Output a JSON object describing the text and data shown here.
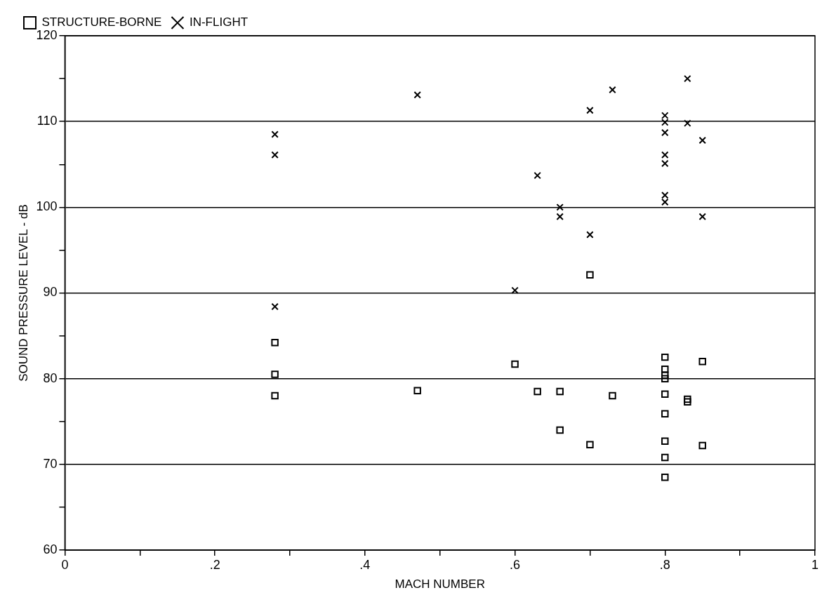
{
  "chart_data": {
    "type": "scatter",
    "xlabel": "MACH NUMBER",
    "ylabel": "SOUND PRESSURE LEVEL - dB",
    "xlim": [
      0,
      1
    ],
    "ylim": [
      60,
      120
    ],
    "xticks": [
      0,
      {
        "value": 0.1,
        "label": null
      },
      {
        "value": 0.2,
        "label": ".2"
      },
      {
        "value": 0.3,
        "label": null
      },
      {
        "value": 0.4,
        "label": ".4"
      },
      {
        "value": 0.5,
        "label": null
      },
      {
        "value": 0.6,
        "label": ".6"
      },
      {
        "value": 0.7,
        "label": null
      },
      {
        "value": 0.8,
        "label": ".8"
      },
      {
        "value": 0.9,
        "label": null
      },
      1
    ],
    "yticks": [
      60,
      {
        "value": 65,
        "label": null
      },
      70,
      {
        "value": 75,
        "label": null
      },
      80,
      {
        "value": 85,
        "label": null
      },
      90,
      {
        "value": 95,
        "label": null
      },
      100,
      {
        "value": 105,
        "label": null
      },
      110,
      {
        "value": 115,
        "label": null
      },
      120
    ],
    "grid": "y",
    "legend": "top left",
    "series": [
      {
        "name": "STRUCTURE-BORNE",
        "color": "#000000",
        "marker": "square",
        "x": [
          0.28,
          0.28,
          0.28,
          0.47,
          0.6,
          0.63,
          0.66,
          0.66,
          0.7,
          0.7,
          0.73,
          0.8,
          0.8,
          0.8,
          0.8,
          0.8,
          0.8,
          0.8,
          0.8,
          0.8,
          0.83,
          0.83,
          0.85,
          0.85
        ],
        "values": [
          84.2,
          80.5,
          78.0,
          78.6,
          81.7,
          78.5,
          78.5,
          74.0,
          92.1,
          72.3,
          78.0,
          82.5,
          81.1,
          80.4,
          80.0,
          78.2,
          75.9,
          72.7,
          70.8,
          68.5,
          77.6,
          77.3,
          82.0,
          72.2
        ]
      },
      {
        "name": "IN-FLIGHT",
        "color": "#000000",
        "marker": "cross",
        "x": [
          0.28,
          0.28,
          0.28,
          0.47,
          0.6,
          0.63,
          0.66,
          0.66,
          0.7,
          0.7,
          0.73,
          0.8,
          0.8,
          0.8,
          0.8,
          0.8,
          0.8,
          0.8,
          0.83,
          0.83,
          0.85,
          0.85
        ],
        "values": [
          108.5,
          106.1,
          88.4,
          113.1,
          90.3,
          103.7,
          100.0,
          98.9,
          111.3,
          96.8,
          113.7,
          110.7,
          109.9,
          108.7,
          106.1,
          105.1,
          101.4,
          100.6,
          115.0,
          109.8,
          107.8,
          98.9
        ]
      }
    ]
  }
}
